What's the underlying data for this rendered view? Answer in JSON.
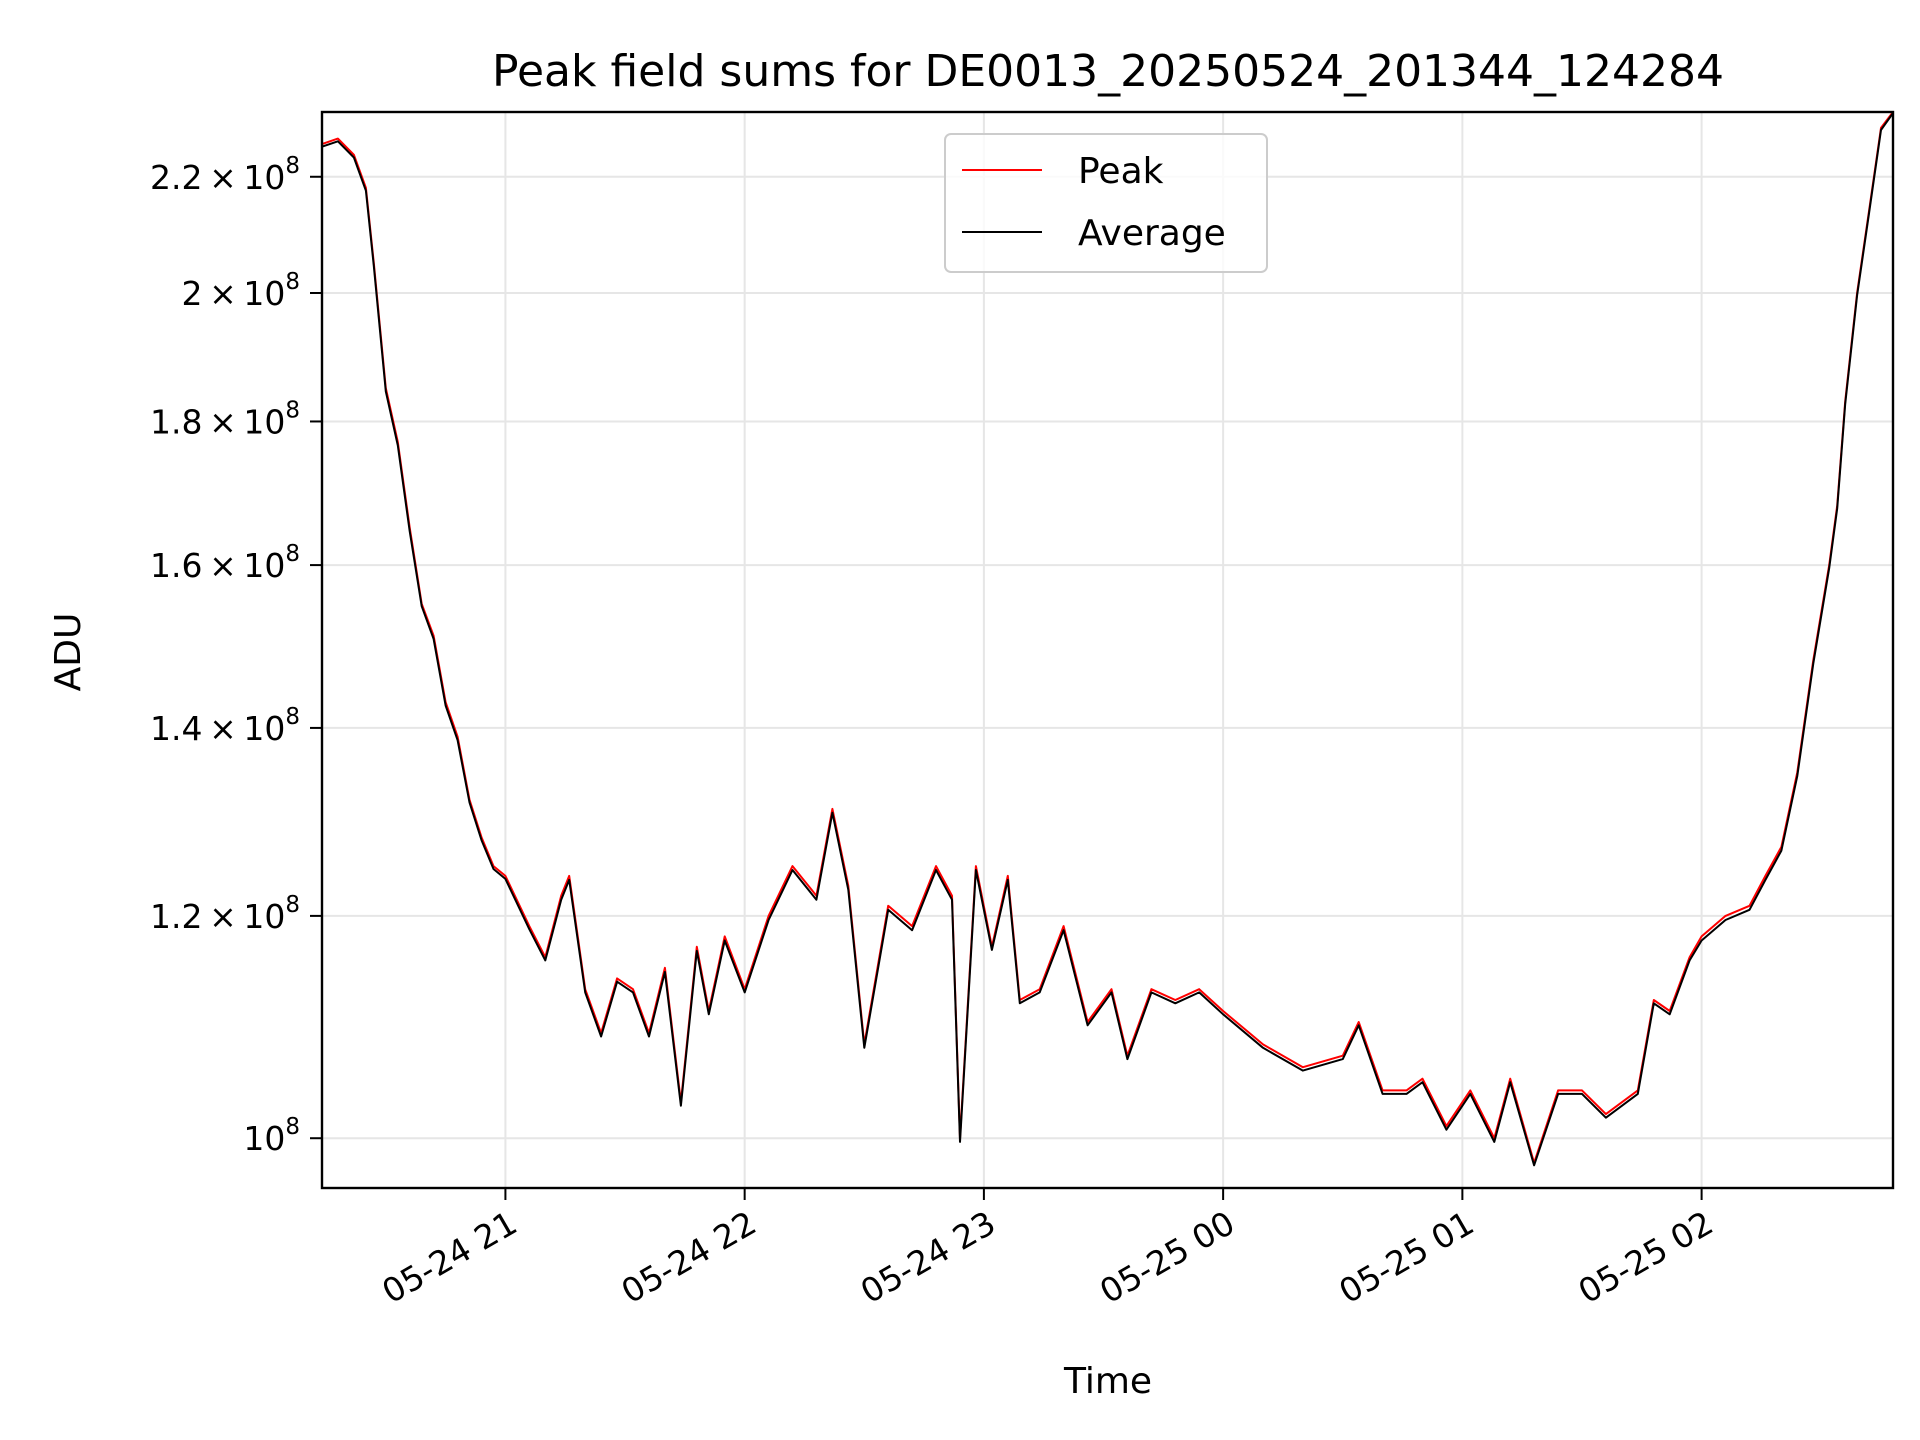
{
  "chart_data": {
    "type": "line",
    "title": "Peak field sums for DE0013_20250524_201344_124284",
    "xlabel": "Time",
    "ylabel": "ADU",
    "yscale": "log",
    "ylim": [
      96000000,
      232000000
    ],
    "xlim": [
      "2025-05-24 20:14",
      "2025-05-25 02:48"
    ],
    "grid": true,
    "legend_position": "top-center",
    "x_ticks": [
      {
        "value": "2025-05-24 21:00",
        "label": "05-24 21"
      },
      {
        "value": "2025-05-24 22:00",
        "label": "05-24 22"
      },
      {
        "value": "2025-05-24 23:00",
        "label": "05-24 23"
      },
      {
        "value": "2025-05-25 00:00",
        "label": "05-25 00"
      },
      {
        "value": "2025-05-25 01:00",
        "label": "05-25 01"
      },
      {
        "value": "2025-05-25 02:00",
        "label": "05-25 02"
      }
    ],
    "y_ticks": [
      {
        "value": 100000000,
        "mantissa": "",
        "exponent": "8"
      },
      {
        "value": 120000000,
        "mantissa": "1.2",
        "exponent": "8"
      },
      {
        "value": 140000000,
        "mantissa": "1.4",
        "exponent": "8"
      },
      {
        "value": 160000000,
        "mantissa": "1.6",
        "exponent": "8"
      },
      {
        "value": 180000000,
        "mantissa": "1.8",
        "exponent": "8"
      },
      {
        "value": 200000000,
        "mantissa": "2",
        "exponent": "8"
      },
      {
        "value": 220000000,
        "mantissa": "2.2",
        "exponent": "8"
      }
    ],
    "series": [
      {
        "name": "Peak",
        "color": "#ff0000",
        "x": [
          "2025-05-24 20:14",
          "2025-05-24 20:18",
          "2025-05-24 20:22",
          "2025-05-24 20:25",
          "2025-05-24 20:27",
          "2025-05-24 20:30",
          "2025-05-24 20:33",
          "2025-05-24 20:36",
          "2025-05-24 20:39",
          "2025-05-24 20:42",
          "2025-05-24 20:45",
          "2025-05-24 20:48",
          "2025-05-24 20:51",
          "2025-05-24 20:54",
          "2025-05-24 20:57",
          "2025-05-24 21:00",
          "2025-05-24 21:06",
          "2025-05-24 21:10",
          "2025-05-24 21:14",
          "2025-05-24 21:16",
          "2025-05-24 21:20",
          "2025-05-24 21:24",
          "2025-05-24 21:28",
          "2025-05-24 21:32",
          "2025-05-24 21:36",
          "2025-05-24 21:40",
          "2025-05-24 21:44",
          "2025-05-24 21:48",
          "2025-05-24 21:51",
          "2025-05-24 21:55",
          "2025-05-24 22:00",
          "2025-05-24 22:06",
          "2025-05-24 22:12",
          "2025-05-24 22:18",
          "2025-05-24 22:22",
          "2025-05-24 22:26",
          "2025-05-24 22:30",
          "2025-05-24 22:36",
          "2025-05-24 22:42",
          "2025-05-24 22:48",
          "2025-05-24 22:52",
          "2025-05-24 22:54",
          "2025-05-24 22:58",
          "2025-05-24 23:02",
          "2025-05-24 23:06",
          "2025-05-24 23:09",
          "2025-05-24 23:14",
          "2025-05-24 23:20",
          "2025-05-24 23:26",
          "2025-05-24 23:32",
          "2025-05-24 23:36",
          "2025-05-24 23:42",
          "2025-05-24 23:48",
          "2025-05-24 23:54",
          "2025-05-25 00:00",
          "2025-05-25 00:10",
          "2025-05-25 00:20",
          "2025-05-25 00:30",
          "2025-05-25 00:34",
          "2025-05-25 00:40",
          "2025-05-25 00:46",
          "2025-05-25 00:50",
          "2025-05-25 00:56",
          "2025-05-25 01:02",
          "2025-05-25 01:08",
          "2025-05-25 01:12",
          "2025-05-25 01:18",
          "2025-05-25 01:24",
          "2025-05-25 01:30",
          "2025-05-25 01:36",
          "2025-05-25 01:44",
          "2025-05-25 01:48",
          "2025-05-25 01:52",
          "2025-05-25 01:57",
          "2025-05-25 02:00",
          "2025-05-25 02:06",
          "2025-05-25 02:12",
          "2025-05-25 02:16",
          "2025-05-25 02:20",
          "2025-05-25 02:24",
          "2025-05-25 02:28",
          "2025-05-25 02:32",
          "2025-05-25 02:34",
          "2025-05-25 02:36",
          "2025-05-25 02:39",
          "2025-05-25 02:42",
          "2025-05-25 02:45",
          "2025-05-25 02:48"
        ],
        "values": [
          226000000,
          227000000,
          224000000,
          218000000,
          205000000,
          185000000,
          177000000,
          165000000,
          155000000,
          151000000,
          143000000,
          139000000,
          132000000,
          128000000,
          125000000,
          124000000,
          119000000,
          116000000,
          122000000,
          124000000,
          113000000,
          109000000,
          114000000,
          113000000,
          109000000,
          115000000,
          103000000,
          117000000,
          111000000,
          118000000,
          113000000,
          120000000,
          125000000,
          122000000,
          131000000,
          123000000,
          108000000,
          121000000,
          119000000,
          125000000,
          122000000,
          100000000,
          125000000,
          117000000,
          124000000,
          112000000,
          113000000,
          119000000,
          110000000,
          113000000,
          107000000,
          113000000,
          112000000,
          113000000,
          111000000,
          108000000,
          106000000,
          107000000,
          110000000,
          104000000,
          104000000,
          105000000,
          101000000,
          104000000,
          100000000,
          105000000,
          98000000,
          104000000,
          104000000,
          102000000,
          104000000,
          112000000,
          111000000,
          116000000,
          118000000,
          120000000,
          121000000,
          124000000,
          127000000,
          135000000,
          148000000,
          160000000,
          168000000,
          183000000,
          200000000,
          214000000,
          229000000,
          232000000
        ]
      },
      {
        "name": "Average",
        "color": "#000000",
        "x": [
          "2025-05-24 20:14",
          "2025-05-24 20:18",
          "2025-05-24 20:22",
          "2025-05-24 20:25",
          "2025-05-24 20:27",
          "2025-05-24 20:30",
          "2025-05-24 20:33",
          "2025-05-24 20:36",
          "2025-05-24 20:39",
          "2025-05-24 20:42",
          "2025-05-24 20:45",
          "2025-05-24 20:48",
          "2025-05-24 20:51",
          "2025-05-24 20:54",
          "2025-05-24 20:57",
          "2025-05-24 21:00",
          "2025-05-24 21:06",
          "2025-05-24 21:10",
          "2025-05-24 21:14",
          "2025-05-24 21:16",
          "2025-05-24 21:20",
          "2025-05-24 21:24",
          "2025-05-24 21:28",
          "2025-05-24 21:32",
          "2025-05-24 21:36",
          "2025-05-24 21:40",
          "2025-05-24 21:44",
          "2025-05-24 21:48",
          "2025-05-24 21:51",
          "2025-05-24 21:55",
          "2025-05-24 22:00",
          "2025-05-24 22:06",
          "2025-05-24 22:12",
          "2025-05-24 22:18",
          "2025-05-24 22:22",
          "2025-05-24 22:26",
          "2025-05-24 22:30",
          "2025-05-24 22:36",
          "2025-05-24 22:42",
          "2025-05-24 22:48",
          "2025-05-24 22:52",
          "2025-05-24 22:54",
          "2025-05-24 22:58",
          "2025-05-24 23:02",
          "2025-05-24 23:06",
          "2025-05-24 23:09",
          "2025-05-24 23:14",
          "2025-05-24 23:20",
          "2025-05-24 23:26",
          "2025-05-24 23:32",
          "2025-05-24 23:36",
          "2025-05-24 23:42",
          "2025-05-24 23:48",
          "2025-05-24 23:54",
          "2025-05-25 00:00",
          "2025-05-25 00:10",
          "2025-05-25 00:20",
          "2025-05-25 00:30",
          "2025-05-25 00:34",
          "2025-05-25 00:40",
          "2025-05-25 00:46",
          "2025-05-25 00:50",
          "2025-05-25 00:56",
          "2025-05-25 01:02",
          "2025-05-25 01:08",
          "2025-05-25 01:12",
          "2025-05-25 01:18",
          "2025-05-25 01:24",
          "2025-05-25 01:30",
          "2025-05-25 01:36",
          "2025-05-25 01:44",
          "2025-05-25 01:48",
          "2025-05-25 01:52",
          "2025-05-25 01:57",
          "2025-05-25 02:00",
          "2025-05-25 02:06",
          "2025-05-25 02:12",
          "2025-05-25 02:16",
          "2025-05-25 02:20",
          "2025-05-25 02:24",
          "2025-05-25 02:28",
          "2025-05-25 02:32",
          "2025-05-25 02:34",
          "2025-05-25 02:36",
          "2025-05-25 02:39",
          "2025-05-25 02:42",
          "2025-05-25 02:45",
          "2025-05-25 02:48"
        ],
        "values": [
          225500000,
          226500000,
          223500000,
          217500000,
          204500000,
          184500000,
          176500000,
          164500000,
          154700000,
          150600000,
          142600000,
          138600000,
          131700000,
          127700000,
          124700000,
          123700000,
          118700000,
          115700000,
          121600000,
          123600000,
          112700000,
          108700000,
          113700000,
          112700000,
          108700000,
          114600000,
          102700000,
          116600000,
          110700000,
          117600000,
          112700000,
          119600000,
          124600000,
          121600000,
          130600000,
          122600000,
          107700000,
          120600000,
          118600000,
          124600000,
          121600000,
          99700000,
          124600000,
          116700000,
          123600000,
          111700000,
          112700000,
          118600000,
          109700000,
          112700000,
          106700000,
          112700000,
          111700000,
          112700000,
          110700000,
          107700000,
          105700000,
          106700000,
          109700000,
          103700000,
          103700000,
          104700000,
          100700000,
          103700000,
          99700000,
          104700000,
          97800000,
          103700000,
          103700000,
          101700000,
          103700000,
          111700000,
          110700000,
          115700000,
          117600000,
          119600000,
          120600000,
          123600000,
          126600000,
          134600000,
          147600000,
          159600000,
          167600000,
          182600000,
          199600000,
          213600000,
          228600000,
          231800000
        ]
      }
    ]
  }
}
